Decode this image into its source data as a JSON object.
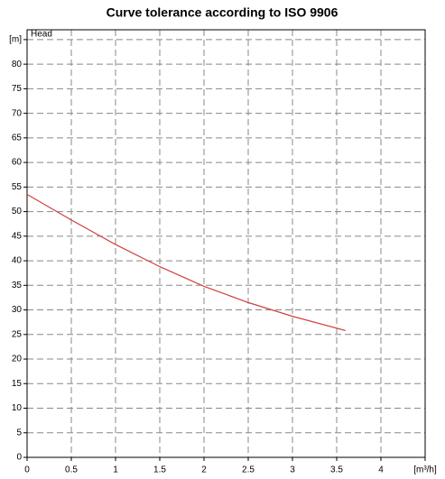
{
  "chart_data": {
    "type": "line",
    "title": "Curve tolerance according to ISO 9906",
    "y_label": "Head",
    "x": [
      0,
      0.5,
      1,
      1.5,
      2,
      2.5,
      3,
      3.6
    ],
    "series": [
      {
        "name": "Head",
        "color": "#d04040",
        "values": [
          53.5,
          48.3,
          43.3,
          38.8,
          34.8,
          31.5,
          28.7,
          25.8
        ]
      }
    ],
    "xlim": [
      0,
      4.5
    ],
    "ylim": [
      0,
      87
    ],
    "xticks": [
      0,
      0.5,
      1,
      1.5,
      2,
      2.5,
      3,
      3.5,
      4,
      {
        "value": 4.5,
        "label": "[m³/h]"
      }
    ],
    "yticks": [
      0,
      5,
      10,
      15,
      20,
      25,
      30,
      35,
      40,
      45,
      50,
      55,
      60,
      65,
      70,
      75,
      80,
      {
        "value": 85,
        "label": "[m]"
      }
    ],
    "grid": true
  }
}
